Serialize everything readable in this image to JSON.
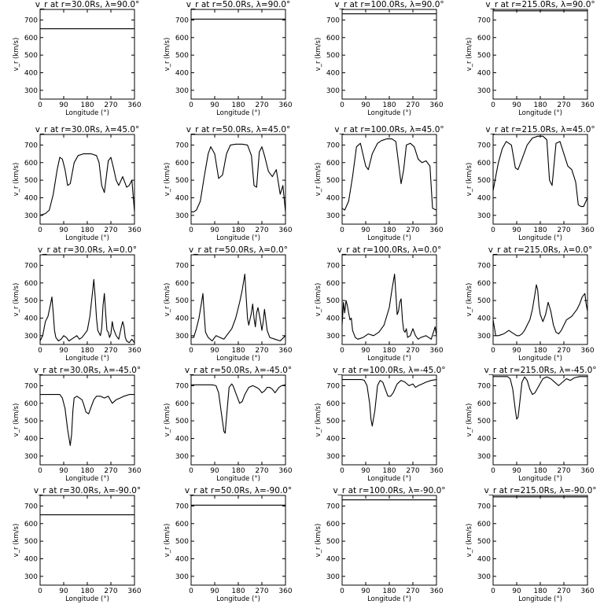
{
  "figure_title": "",
  "chart_data": [
    {
      "type": "line",
      "title": "v_r at r=30.0Rs, λ=90.0°",
      "xlabel": "Longitude (°)",
      "ylabel": "v_r (km/s)",
      "xlim": [
        0,
        360
      ],
      "ylim": [
        250,
        760
      ],
      "x": [
        0,
        360
      ],
      "series": [
        {
          "values": [
            650,
            650
          ]
        }
      ]
    },
    {
      "type": "line",
      "title": "v_r at r=50.0Rs, λ=90.0°",
      "xlabel": "Longitude (°)",
      "ylabel": "v_r (km/s)",
      "xlim": [
        0,
        360
      ],
      "ylim": [
        250,
        760
      ],
      "x": [
        0,
        360
      ],
      "series": [
        {
          "values": [
            705,
            705
          ]
        }
      ]
    },
    {
      "type": "line",
      "title": "v_r at r=100.0Rs, λ=90.0°",
      "xlabel": "Longitude (°)",
      "ylabel": "v_r (km/s)",
      "xlim": [
        0,
        360
      ],
      "ylim": [
        250,
        760
      ],
      "x": [
        0,
        360
      ],
      "series": [
        {
          "values": [
            735,
            735
          ]
        }
      ]
    },
    {
      "type": "line",
      "title": "v_r at r=215.0Rs, λ=90.0°",
      "xlabel": "Longitude (°)",
      "ylabel": "v_r (km/s)",
      "xlim": [
        0,
        360
      ],
      "ylim": [
        250,
        760
      ],
      "x": [
        0,
        360
      ],
      "series": [
        {
          "values": [
            752,
            752
          ]
        }
      ]
    },
    {
      "type": "line",
      "title": "v_r at r=30.0Rs, λ=45.0°",
      "xlabel": "Longitude (°)",
      "ylabel": "v_r (km/s)",
      "xlim": [
        0,
        360
      ],
      "ylim": [
        250,
        760
      ],
      "x": [
        0,
        10,
        20,
        35,
        50,
        65,
        75,
        85,
        95,
        105,
        115,
        130,
        145,
        165,
        195,
        215,
        225,
        235,
        245,
        260,
        270,
        280,
        290,
        300,
        315,
        330,
        340,
        350,
        360
      ],
      "series": [
        {
          "values": [
            300,
            305,
            310,
            330,
            420,
            560,
            630,
            620,
            560,
            470,
            480,
            600,
            640,
            650,
            650,
            640,
            600,
            470,
            430,
            610,
            630,
            570,
            500,
            470,
            520,
            460,
            470,
            500,
            320
          ]
        }
      ]
    },
    {
      "type": "line",
      "title": "v_r at r=50.0Rs, λ=45.0°",
      "xlabel": "Longitude (°)",
      "ylabel": "v_r (km/s)",
      "xlim": [
        0,
        360
      ],
      "ylim": [
        250,
        760
      ],
      "x": [
        0,
        10,
        20,
        35,
        50,
        65,
        75,
        90,
        105,
        120,
        135,
        150,
        170,
        195,
        215,
        230,
        240,
        250,
        260,
        270,
        280,
        295,
        310,
        325,
        340,
        350,
        360
      ],
      "series": [
        {
          "values": [
            320,
            320,
            330,
            380,
            520,
            650,
            690,
            650,
            510,
            530,
            650,
            700,
            705,
            705,
            700,
            640,
            470,
            460,
            660,
            690,
            640,
            550,
            520,
            560,
            420,
            470,
            320
          ]
        }
      ]
    },
    {
      "type": "line",
      "title": "v_r at r=100.0Rs, λ=45.0°",
      "xlabel": "Longitude (°)",
      "ylabel": "v_r (km/s)",
      "xlim": [
        0,
        360
      ],
      "ylim": [
        250,
        760
      ],
      "x": [
        0,
        10,
        25,
        40,
        55,
        70,
        90,
        100,
        115,
        135,
        150,
        170,
        190,
        205,
        215,
        225,
        235,
        245,
        260,
        275,
        290,
        305,
        320,
        335,
        345,
        360
      ],
      "series": [
        {
          "values": [
            340,
            330,
            380,
            520,
            690,
            710,
            580,
            560,
            650,
            710,
            725,
            735,
            735,
            720,
            600,
            480,
            560,
            700,
            710,
            690,
            620,
            600,
            610,
            580,
            340,
            330
          ]
        }
      ]
    },
    {
      "type": "line",
      "title": "v_r at r=215.0Rs, λ=45.0°",
      "xlabel": "Longitude (°)",
      "ylabel": "v_r (km/s)",
      "xlim": [
        0,
        360
      ],
      "ylim": [
        250,
        760
      ],
      "x": [
        0,
        10,
        20,
        35,
        50,
        70,
        85,
        95,
        110,
        130,
        150,
        170,
        190,
        205,
        215,
        225,
        240,
        255,
        270,
        285,
        300,
        315,
        325,
        335,
        345,
        360
      ],
      "series": [
        {
          "values": [
            440,
            520,
            600,
            680,
            720,
            700,
            570,
            560,
            620,
            700,
            740,
            750,
            750,
            730,
            500,
            470,
            710,
            720,
            650,
            580,
            560,
            490,
            360,
            350,
            350,
            400
          ]
        }
      ]
    },
    {
      "type": "line",
      "title": "v_r at r=30.0Rs, λ=0.0°",
      "xlabel": "Longitude (°)",
      "ylabel": "v_r (km/s)",
      "xlim": [
        0,
        360
      ],
      "ylim": [
        250,
        760
      ],
      "x": [
        0,
        10,
        20,
        30,
        40,
        45,
        50,
        55,
        60,
        70,
        80,
        90,
        100,
        110,
        120,
        130,
        140,
        150,
        160,
        170,
        180,
        190,
        200,
        205,
        210,
        215,
        220,
        230,
        235,
        240,
        245,
        250,
        255,
        260,
        265,
        270,
        275,
        280,
        290,
        300,
        310,
        315,
        320,
        325,
        330,
        340,
        350,
        360
      ],
      "series": [
        {
          "values": [
            270,
            300,
            380,
            410,
            480,
            520,
            430,
            330,
            290,
            270,
            280,
            300,
            290,
            270,
            280,
            290,
            300,
            280,
            290,
            310,
            330,
            410,
            550,
            620,
            520,
            400,
            330,
            300,
            340,
            470,
            540,
            430,
            330,
            320,
            290,
            310,
            380,
            340,
            300,
            280,
            350,
            380,
            350,
            290,
            270,
            260,
            280,
            260
          ]
        }
      ]
    },
    {
      "type": "line",
      "title": "v_r at r=50.0Rs, λ=0.0°",
      "xlabel": "Longitude (°)",
      "ylabel": "v_r (km/s)",
      "xlim": [
        0,
        360
      ],
      "ylim": [
        250,
        760
      ],
      "x": [
        0,
        10,
        20,
        30,
        40,
        45,
        50,
        55,
        65,
        80,
        95,
        110,
        125,
        140,
        155,
        170,
        185,
        195,
        205,
        210,
        215,
        220,
        230,
        235,
        240,
        245,
        250,
        255,
        260,
        265,
        270,
        275,
        280,
        290,
        300,
        320,
        340,
        360
      ],
      "series": [
        {
          "values": [
            290,
            290,
            340,
            400,
            490,
            540,
            420,
            320,
            290,
            270,
            300,
            290,
            280,
            310,
            340,
            400,
            490,
            560,
            650,
            520,
            400,
            360,
            430,
            480,
            400,
            350,
            430,
            460,
            420,
            380,
            330,
            380,
            450,
            330,
            290,
            280,
            270,
            300
          ]
        }
      ]
    },
    {
      "type": "line",
      "title": "v_r at r=100.0Rs, λ=0.0°",
      "xlabel": "Longitude (°)",
      "ylabel": "v_r (km/s)",
      "xlim": [
        0,
        360
      ],
      "ylim": [
        250,
        760
      ],
      "x": [
        0,
        5,
        10,
        15,
        20,
        25,
        30,
        35,
        40,
        50,
        60,
        80,
        100,
        120,
        140,
        160,
        180,
        190,
        200,
        205,
        210,
        215,
        220,
        225,
        230,
        235,
        240,
        245,
        250,
        260,
        270,
        280,
        290,
        300,
        320,
        340,
        355,
        360
      ],
      "series": [
        {
          "values": [
            360,
            490,
            430,
            500,
            470,
            430,
            390,
            400,
            330,
            290,
            280,
            290,
            310,
            300,
            320,
            360,
            460,
            560,
            650,
            540,
            420,
            440,
            490,
            510,
            390,
            330,
            320,
            340,
            290,
            300,
            340,
            300,
            280,
            290,
            300,
            280,
            350,
            300
          ]
        }
      ]
    },
    {
      "type": "line",
      "title": "v_r at r=215.0Rs, λ=0.0°",
      "xlabel": "Longitude (°)",
      "ylabel": "v_r (km/s)",
      "xlim": [
        0,
        360
      ],
      "ylim": [
        250,
        760
      ],
      "x": [
        0,
        10,
        20,
        30,
        40,
        50,
        60,
        70,
        80,
        90,
        100,
        110,
        120,
        130,
        140,
        150,
        160,
        165,
        170,
        175,
        180,
        190,
        200,
        210,
        220,
        230,
        240,
        250,
        260,
        270,
        280,
        290,
        300,
        310,
        320,
        330,
        340,
        350,
        355,
        360
      ],
      "series": [
        {
          "values": [
            390,
            300,
            300,
            305,
            310,
            320,
            330,
            320,
            310,
            300,
            300,
            310,
            330,
            360,
            390,
            450,
            540,
            590,
            560,
            470,
            420,
            380,
            420,
            490,
            440,
            360,
            320,
            310,
            330,
            360,
            390,
            400,
            410,
            430,
            450,
            480,
            520,
            540,
            480,
            440
          ]
        }
      ]
    },
    {
      "type": "line",
      "title": "v_r at r=30.0Rs, λ=-45.0°",
      "xlabel": "Longitude (°)",
      "ylabel": "v_r (km/s)",
      "xlim": [
        0,
        360
      ],
      "ylim": [
        250,
        760
      ],
      "x": [
        0,
        20,
        40,
        60,
        75,
        85,
        95,
        105,
        115,
        120,
        125,
        130,
        140,
        150,
        160,
        165,
        175,
        185,
        195,
        205,
        215,
        230,
        245,
        260,
        275,
        290,
        305,
        320,
        340,
        360
      ],
      "series": [
        {
          "values": [
            650,
            650,
            650,
            650,
            650,
            630,
            570,
            450,
            360,
            420,
            560,
            630,
            640,
            630,
            620,
            600,
            550,
            540,
            580,
            620,
            640,
            640,
            630,
            640,
            600,
            620,
            630,
            640,
            650,
            650
          ]
        }
      ]
    },
    {
      "type": "line",
      "title": "v_r at r=50.0Rs, λ=-45.0°",
      "xlabel": "Longitude (°)",
      "ylabel": "v_r (km/s)",
      "xlim": [
        0,
        360
      ],
      "ylim": [
        250,
        760
      ],
      "x": [
        0,
        20,
        40,
        60,
        80,
        95,
        105,
        115,
        125,
        130,
        135,
        145,
        155,
        160,
        175,
        185,
        195,
        205,
        220,
        235,
        250,
        260,
        270,
        280,
        290,
        300,
        310,
        320,
        335,
        345,
        360
      ],
      "series": [
        {
          "values": [
            705,
            705,
            705,
            705,
            705,
            700,
            660,
            550,
            440,
            430,
            520,
            690,
            710,
            700,
            640,
            600,
            610,
            650,
            690,
            700,
            690,
            680,
            660,
            670,
            690,
            690,
            680,
            660,
            690,
            700,
            705
          ]
        }
      ]
    },
    {
      "type": "line",
      "title": "v_r at r=100.0Rs, λ=-45.0°",
      "xlabel": "Longitude (°)",
      "ylabel": "v_r (km/s)",
      "xlim": [
        0,
        360
      ],
      "ylim": [
        250,
        760
      ],
      "x": [
        0,
        20,
        40,
        60,
        75,
        85,
        95,
        105,
        110,
        115,
        125,
        135,
        145,
        155,
        165,
        175,
        185,
        195,
        210,
        225,
        240,
        255,
        270,
        280,
        290,
        305,
        320,
        340,
        360
      ],
      "series": [
        {
          "values": [
            735,
            735,
            735,
            735,
            735,
            730,
            700,
            600,
            510,
            470,
            560,
            700,
            730,
            720,
            680,
            640,
            640,
            660,
            710,
            730,
            720,
            700,
            710,
            690,
            700,
            710,
            720,
            730,
            735
          ]
        }
      ]
    },
    {
      "type": "line",
      "title": "v_r at r=215.0Rs, λ=-45.0°",
      "xlabel": "Longitude (°)",
      "ylabel": "v_r (km/s)",
      "xlim": [
        0,
        360
      ],
      "ylim": [
        250,
        760
      ],
      "x": [
        0,
        20,
        40,
        55,
        65,
        75,
        85,
        90,
        95,
        100,
        110,
        120,
        130,
        140,
        150,
        160,
        175,
        190,
        205,
        220,
        235,
        250,
        265,
        280,
        295,
        310,
        330,
        350,
        360
      ],
      "series": [
        {
          "values": [
            752,
            752,
            752,
            752,
            740,
            680,
            560,
            510,
            520,
            580,
            720,
            750,
            730,
            680,
            650,
            660,
            700,
            740,
            750,
            740,
            720,
            700,
            720,
            740,
            730,
            745,
            752,
            752,
            752
          ]
        }
      ]
    },
    {
      "type": "line",
      "title": "v_r at r=30.0Rs, λ=-90.0°",
      "xlabel": "Longitude (°)",
      "ylabel": "v_r (km/s)",
      "xlim": [
        0,
        360
      ],
      "ylim": [
        250,
        760
      ],
      "x": [
        0,
        360
      ],
      "series": [
        {
          "values": [
            650,
            650
          ]
        }
      ]
    },
    {
      "type": "line",
      "title": "v_r at r=50.0Rs, λ=-90.0°",
      "xlabel": "Longitude (°)",
      "ylabel": "v_r (km/s)",
      "xlim": [
        0,
        360
      ],
      "ylim": [
        250,
        760
      ],
      "x": [
        0,
        360
      ],
      "series": [
        {
          "values": [
            705,
            705
          ]
        }
      ]
    },
    {
      "type": "line",
      "title": "v_r at r=100.0Rs, λ=-90.0°",
      "xlabel": "Longitude (°)",
      "ylabel": "v_r (km/s)",
      "xlim": [
        0,
        360
      ],
      "ylim": [
        250,
        760
      ],
      "x": [
        0,
        360
      ],
      "series": [
        {
          "values": [
            735,
            735
          ]
        }
      ]
    },
    {
      "type": "line",
      "title": "v_r at r=215.0Rs, λ=-90.0°",
      "xlabel": "Longitude (°)",
      "ylabel": "v_r (km/s)",
      "xlim": [
        0,
        360
      ],
      "ylim": [
        250,
        760
      ],
      "x": [
        0,
        360
      ],
      "series": [
        {
          "values": [
            752,
            752
          ]
        }
      ]
    }
  ],
  "x_ticks": [
    0,
    90,
    180,
    270,
    360
  ],
  "y_ticks": [
    300,
    400,
    500,
    600,
    700
  ]
}
